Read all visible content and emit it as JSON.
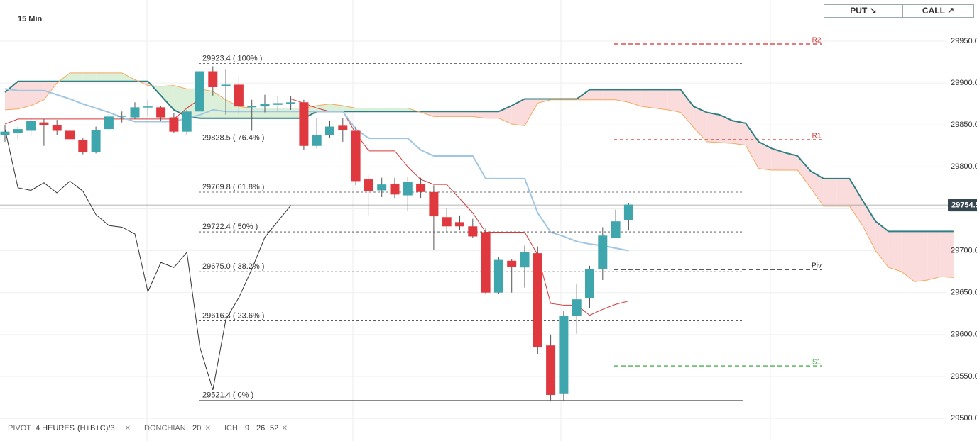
{
  "chart_data": {
    "type": "candlestick",
    "title": "15 Min",
    "ylim": [
      29473,
      29999
    ],
    "yticks": [
      {
        "value": 29500,
        "label": "29500.0"
      },
      {
        "value": 29550,
        "label": "29550.0"
      },
      {
        "value": 29600,
        "label": "29600.0"
      },
      {
        "value": 29650,
        "label": "29650.0"
      },
      {
        "value": 29700,
        "label": "29700.0"
      },
      {
        "value": 29750,
        "label": "29750.0"
      },
      {
        "value": 29800,
        "label": "29800.0"
      },
      {
        "value": 29850,
        "label": "29850.0"
      },
      {
        "value": 29900,
        "label": "29900.0"
      },
      {
        "value": 29950,
        "label": "29950.0"
      }
    ],
    "grid": true,
    "up_color": "#3fa6ad",
    "down_color": "#e0383f",
    "open": [
      29838,
      29840,
      29843,
      29853,
      29850,
      29843,
      29832,
      29818,
      29845,
      29860,
      29859,
      29871,
      29871,
      29859,
      29842,
      29866,
      29914,
      29896,
      29898,
      29871,
      29872,
      29874,
      29875,
      29877,
      29825,
      29838,
      29849,
      29843,
      29785,
      29772,
      29780,
      29766,
      29780,
      29770,
      29740,
      29734,
      29729,
      29722,
      29650,
      29688,
      29680,
      29697,
      29587,
      29529,
      29622,
      29643,
      29678,
      29715,
      29736
    ],
    "high": [
      29850,
      29848,
      29857,
      29857,
      29856,
      29847,
      29834,
      29848,
      29864,
      29866,
      29877,
      29880,
      29873,
      29864,
      29868,
      29923,
      29920,
      29916,
      29908,
      29880,
      29886,
      29884,
      29884,
      29880,
      29858,
      29855,
      29858,
      29848,
      29790,
      29787,
      29787,
      29788,
      29787,
      29778,
      29751,
      29742,
      29738,
      29727,
      29692,
      29690,
      29706,
      29705,
      29600,
      29628,
      29660,
      29682,
      29728,
      29749,
      29757
    ],
    "low": [
      29830,
      29833,
      29837,
      29825,
      29838,
      29830,
      29815,
      29816,
      29843,
      29853,
      29857,
      29860,
      29855,
      29840,
      29838,
      29860,
      29885,
      29862,
      29863,
      29843,
      29865,
      29866,
      29868,
      29820,
      29822,
      29835,
      29830,
      29778,
      29742,
      29764,
      29763,
      29747,
      29763,
      29701,
      29722,
      29725,
      29715,
      29648,
      29648,
      29650,
      29656,
      29577,
      29521,
      29521,
      29601,
      29632,
      29665,
      29715,
      29724
    ],
    "close": [
      29842,
      29845,
      29855,
      29850,
      29843,
      29833,
      29818,
      29844,
      29860,
      29861,
      29871,
      29872,
      29859,
      29842,
      29866,
      29914,
      29895,
      29898,
      29872,
      29873,
      29875,
      29876,
      29877,
      29825,
      29838,
      29848,
      29844,
      29783,
      29771,
      29779,
      29767,
      29782,
      29770,
      29741,
      29729,
      29729,
      29717,
      29650,
      29689,
      29681,
      29698,
      29585,
      29528,
      29622,
      29642,
      29678,
      29718,
      29735,
      29755
    ],
    "cloud_colors": {
      "above": "#fbdcdc",
      "below": "#dcefd8"
    },
    "series": [
      {
        "color": "#2f7f84",
        "values": [
          29889,
          29902,
          29902,
          29902,
          29902,
          29902,
          29902,
          29902,
          29902,
          29902,
          29902,
          29902,
          29885,
          29868,
          29860,
          29858,
          29858,
          29858,
          29858,
          29858,
          29858,
          29858,
          29858,
          29858,
          29866,
          29866,
          29866,
          29866,
          29866,
          29866,
          29866,
          29866,
          29866,
          29866,
          29866,
          29866,
          29866,
          29866,
          29866,
          29873,
          29881,
          29881,
          29881,
          29881,
          29881,
          29892,
          29892,
          29892,
          29892,
          29892,
          29892,
          29892,
          29892,
          29872,
          29865,
          29862,
          29855,
          29852,
          29830,
          29822,
          29817,
          29813,
          29795,
          29786,
          29786,
          29786,
          29760,
          29735,
          29723,
          29723,
          29723,
          29723,
          29723,
          29723
        ]
      },
      {
        "color": "#f4a860",
        "values": [
          29868,
          29869,
          29873,
          29880,
          29900,
          29912,
          29912,
          29912,
          29912,
          29912,
          29904,
          29897,
          29896,
          29897,
          29893,
          29893,
          29890,
          29880,
          29872,
          29870,
          29870,
          29870,
          29870,
          29870,
          29873,
          29875,
          29873,
          29870,
          29870,
          29870,
          29870,
          29870,
          29865,
          29860,
          29860,
          29860,
          29860,
          29858,
          29858,
          29851,
          29849,
          29876,
          29880,
          29880,
          29880,
          29880,
          29880,
          29880,
          29877,
          29872,
          29870,
          29868,
          29865,
          29847,
          29830,
          29829,
          29828,
          29826,
          29798,
          29796,
          29796,
          29796,
          29775,
          29753,
          29753,
          29753,
          29730,
          29700,
          29680,
          29675,
          29663,
          29665,
          29669,
          29668
        ]
      },
      {
        "color": "#d43a3a",
        "values": [
          29851,
          29857,
          29857,
          29857,
          29857,
          29857,
          29857,
          29857,
          29857,
          29857,
          29857,
          29857,
          29857,
          29857,
          29870,
          29881,
          29881,
          29881,
          29881,
          29881,
          29881,
          29881,
          29881,
          29876,
          29870,
          29866,
          29866,
          29840,
          29819,
          29819,
          29819,
          29800,
          29785,
          29779,
          29779,
          29762,
          29745,
          29722,
          29722,
          29722,
          29722,
          29695,
          29637,
          29635,
          29635,
          29623,
          29630,
          29636,
          29640,
          null,
          null,
          null,
          null,
          null,
          null,
          null,
          null,
          null,
          null,
          null,
          null,
          null,
          null,
          null,
          null,
          null,
          null,
          null,
          null,
          null,
          null,
          null,
          null,
          null
        ]
      },
      {
        "color": "#9fc6e2",
        "values": [
          29893,
          29891,
          29891,
          29891,
          29886,
          29881,
          29875,
          29870,
          29865,
          29859,
          29854,
          29854,
          29854,
          29854,
          29858,
          29862,
          29868,
          29866,
          29866,
          29866,
          29866,
          29866,
          29866,
          29866,
          29866,
          29866,
          29866,
          29845,
          29834,
          29834,
          29834,
          29834,
          29820,
          29813,
          29813,
          29813,
          29813,
          29786,
          29786,
          29786,
          29786,
          29745,
          29722,
          29717,
          29711,
          29708,
          29706,
          29703,
          29700,
          null,
          null,
          null,
          null,
          null,
          null,
          null,
          null,
          null,
          null,
          null,
          null,
          null,
          null,
          null,
          null,
          null,
          null,
          null,
          null,
          null,
          null,
          null,
          null,
          null
        ]
      },
      {
        "color": "#333333",
        "values": [
          29845,
          29775,
          29772,
          29781,
          29769,
          29783,
          29771,
          29743,
          29730,
          29728,
          29720,
          29651,
          29686,
          29680,
          29698,
          29585,
          29534,
          29618,
          29644,
          29678,
          29716,
          29735,
          29754,
          null,
          null,
          null,
          null,
          null,
          null,
          null,
          null,
          null,
          null,
          null,
          null,
          null,
          null,
          null,
          null,
          null,
          null,
          null,
          null,
          null,
          null,
          null,
          null,
          null,
          null,
          null,
          null,
          null,
          null,
          null,
          null,
          null,
          null,
          null,
          null,
          null,
          null,
          null,
          null,
          null,
          null,
          null,
          null,
          null,
          null,
          null,
          null,
          null,
          null,
          null
        ]
      }
    ],
    "fib_levels": [
      {
        "value": 29923.4,
        "label": "29923.4 ( 100% )"
      },
      {
        "value": 29828.5,
        "label": "29828.5 ( 76.4% )"
      },
      {
        "value": 29769.8,
        "label": "29769.8 ( 61.8% )"
      },
      {
        "value": 29722.4,
        "label": "29722.4 ( 50% )"
      },
      {
        "value": 29675.0,
        "label": "29675.0 ( 38.2% )"
      },
      {
        "value": 29616.3,
        "label": "29616.3 ( 23.6% )"
      },
      {
        "value": 29521.4,
        "label": "29521.4 ( 0% )"
      }
    ],
    "pivots": [
      {
        "label": "R2",
        "value": 29946.6,
        "color": "#d32f2f"
      },
      {
        "label": "R1",
        "value": 29832.4,
        "color": "#d32f2f"
      },
      {
        "label": "Piv",
        "value": 29677.6,
        "color": "#222222"
      },
      {
        "label": "S1",
        "value": 29562.6,
        "color": "#4caf50"
      }
    ],
    "current_price": {
      "value": 29754.5,
      "label": "29754.5"
    }
  },
  "buttons": [
    "PUT ↘",
    "CALL ↗"
  ],
  "indicators": [
    {
      "name": "PIVOT",
      "params": [
        "4 HEURES",
        "(H+B+C)/3"
      ]
    },
    {
      "name": "DONCHIAN",
      "params": [
        "20"
      ]
    },
    {
      "name": "ICHI",
      "params": [
        "9",
        "26",
        "52"
      ]
    }
  ],
  "close_icon": "×"
}
